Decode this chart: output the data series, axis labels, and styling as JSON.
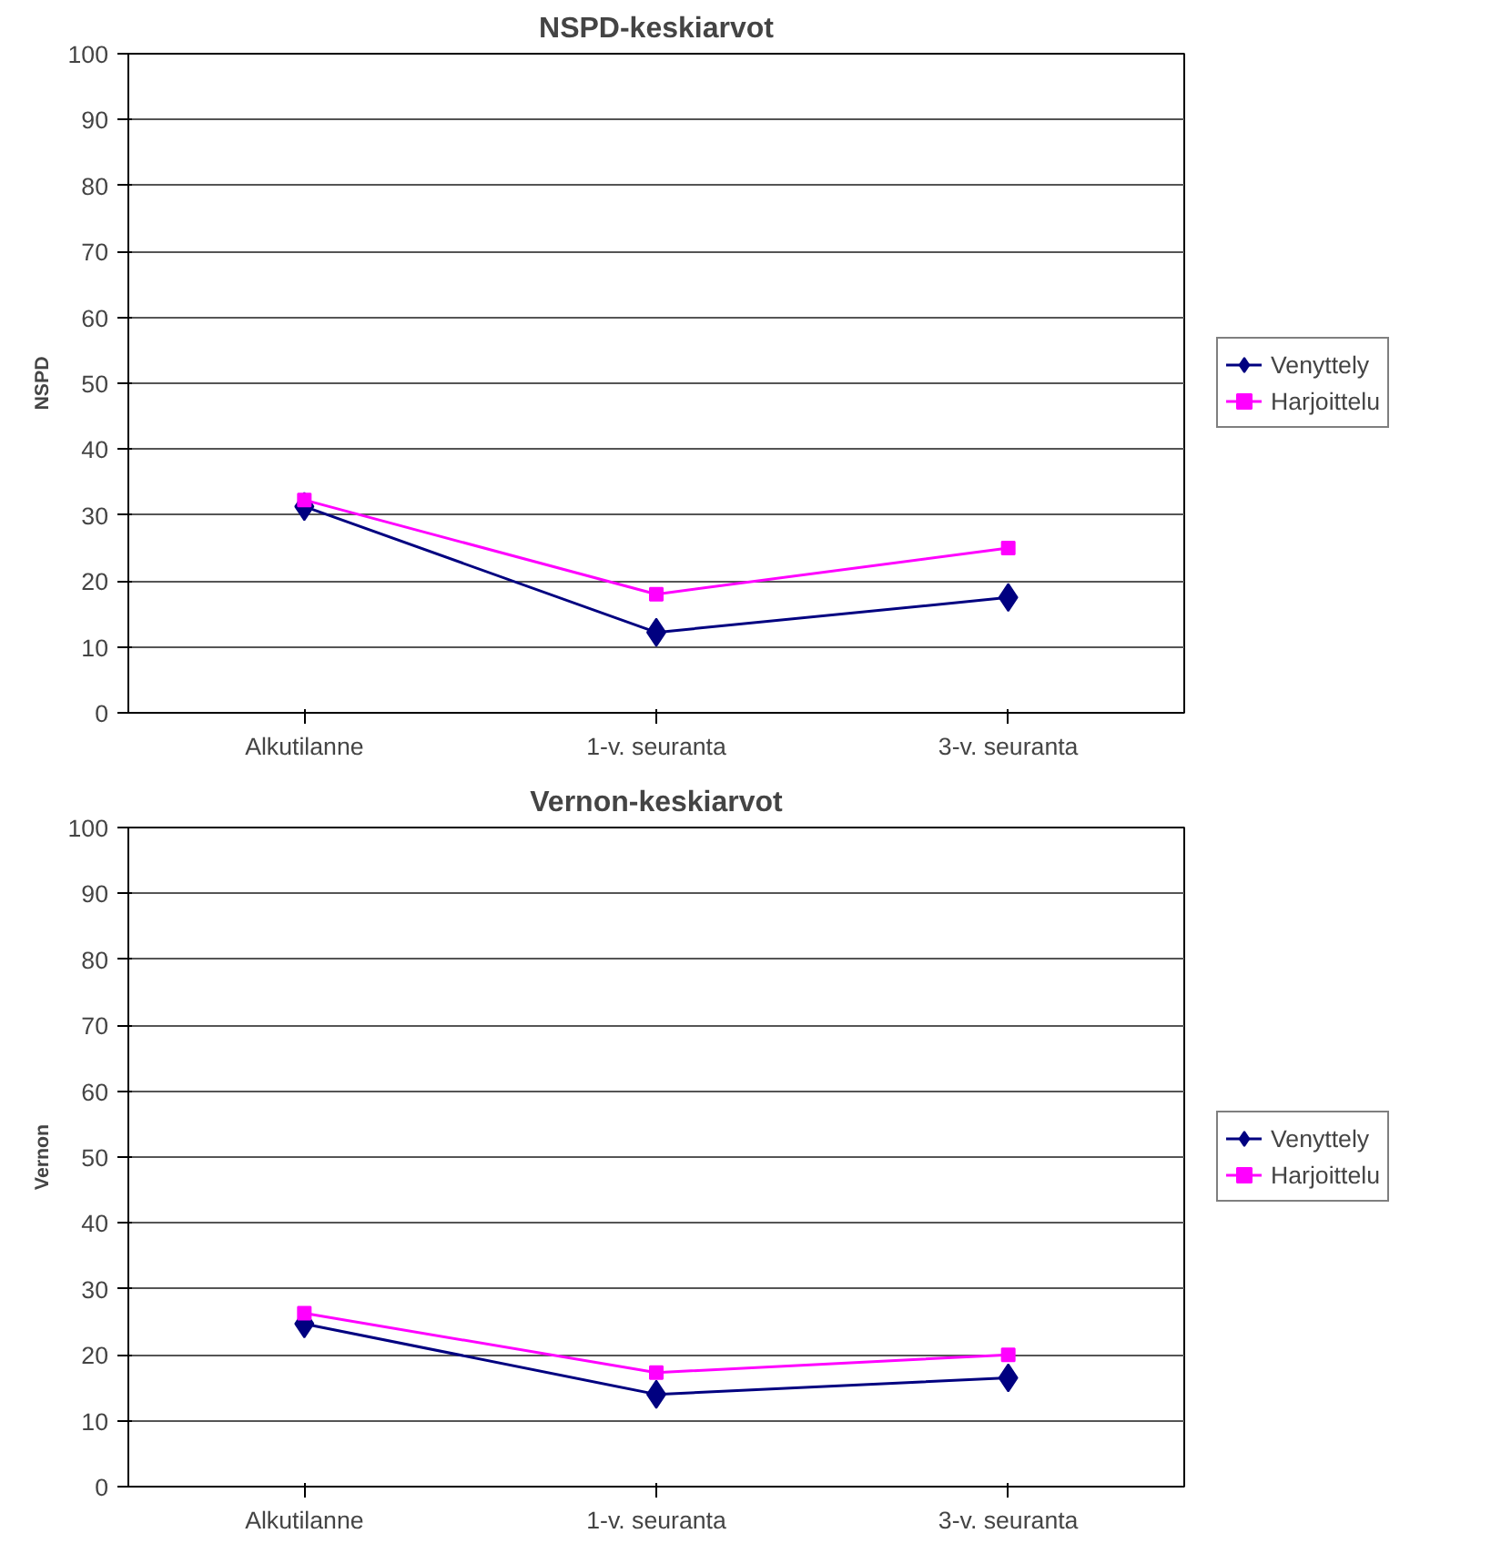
{
  "chart_data": [
    {
      "type": "line",
      "title": "NSPD-keskiarvot",
      "ylabel": "NSPD",
      "categories": [
        "Alkutilanne",
        "1-v. seuranta",
        "3-v. seuranta"
      ],
      "series": [
        {
          "name": "Venyttely",
          "color": "#000080",
          "marker": "diamond",
          "values": [
            31.3,
            12.2,
            17.5
          ]
        },
        {
          "name": "Harjoittelu",
          "color": "#ff00ff",
          "marker": "square",
          "values": [
            32.3,
            18.0,
            25.0
          ]
        }
      ],
      "ylim": [
        0,
        100
      ],
      "yticks": [
        0,
        10,
        20,
        30,
        40,
        50,
        60,
        70,
        80,
        90,
        100
      ],
      "grid": "y",
      "legend": "right"
    },
    {
      "type": "line",
      "title": "Vernon-keskiarvot",
      "ylabel": "Vernon",
      "categories": [
        "Alkutilanne",
        "1-v. seuranta",
        "3-v. seuranta"
      ],
      "series": [
        {
          "name": "Venyttely",
          "color": "#000080",
          "marker": "diamond",
          "values": [
            24.7,
            14.0,
            16.5
          ]
        },
        {
          "name": "Harjoittelu",
          "color": "#ff00ff",
          "marker": "square",
          "values": [
            26.3,
            17.3,
            20.0
          ]
        }
      ],
      "ylim": [
        0,
        100
      ],
      "yticks": [
        0,
        10,
        20,
        30,
        40,
        50,
        60,
        70,
        80,
        90,
        100
      ],
      "grid": "y",
      "legend": "right"
    }
  ]
}
